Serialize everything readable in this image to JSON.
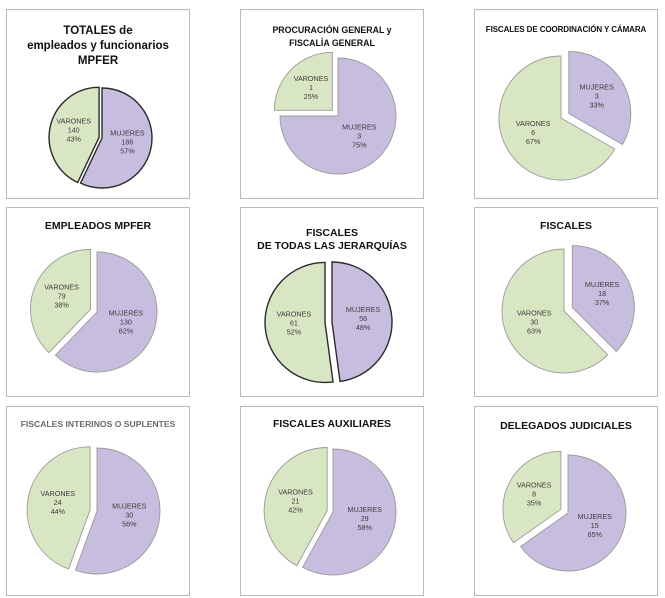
{
  "colors": {
    "mujeres": "#c7bedf",
    "varones": "#d9e6c3",
    "stroke": "#9a9a9a",
    "dark_stroke": "#2b2b2b"
  },
  "chart_data": [
    {
      "type": "pie",
      "title": "TOTALES de\nempleados y funcionarios\nMPFER",
      "categories": [
        "MUJERES",
        "VARONES"
      ],
      "values": [
        186,
        140
      ],
      "percent": [
        "57%",
        "43%"
      ]
    },
    {
      "type": "pie",
      "title": "PROCURACIÓN GENERAL y\nFISCALÍA GENERAL",
      "categories": [
        "MUJERES",
        "VARONES"
      ],
      "values": [
        3,
        1
      ],
      "percent": [
        "75%",
        "25%"
      ]
    },
    {
      "type": "pie",
      "title": "FISCALES DE COORDINACIÓN Y CÁMARA",
      "categories": [
        "MUJERES",
        "VARONES"
      ],
      "values": [
        3,
        6
      ],
      "percent": [
        "33%",
        "67%"
      ]
    },
    {
      "type": "pie",
      "title": "EMPLEADOS MPFER",
      "categories": [
        "MUJERES",
        "VARONES"
      ],
      "values": [
        130,
        79
      ],
      "percent": [
        "62%",
        "38%"
      ]
    },
    {
      "type": "pie",
      "title": "FISCALES\nDE TODAS LAS JERARQUÍAS",
      "categories": [
        "MUJERES",
        "VARONES"
      ],
      "values": [
        56,
        61
      ],
      "percent": [
        "48%",
        "52%"
      ]
    },
    {
      "type": "pie",
      "title": "FISCALES",
      "categories": [
        "MUJERES",
        "VARONES"
      ],
      "values": [
        18,
        30
      ],
      "percent": [
        "37%",
        "63%"
      ]
    },
    {
      "type": "pie",
      "title": "FISCALES INTERINOS O SUPLENTES",
      "categories": [
        "MUJERES",
        "VARONES"
      ],
      "values": [
        30,
        24
      ],
      "percent": [
        "56%",
        "44%"
      ]
    },
    {
      "type": "pie",
      "title": "FISCALES AUXILIARES",
      "categories": [
        "MUJERES",
        "VARONES"
      ],
      "values": [
        29,
        21
      ],
      "percent": [
        "58%",
        "42%"
      ]
    },
    {
      "type": "pie",
      "title": "DELEGADOS JUDICIALES",
      "categories": [
        "MUJERES",
        "VARONES"
      ],
      "values": [
        15,
        8
      ],
      "percent": [
        "65%",
        "35%"
      ]
    }
  ]
}
